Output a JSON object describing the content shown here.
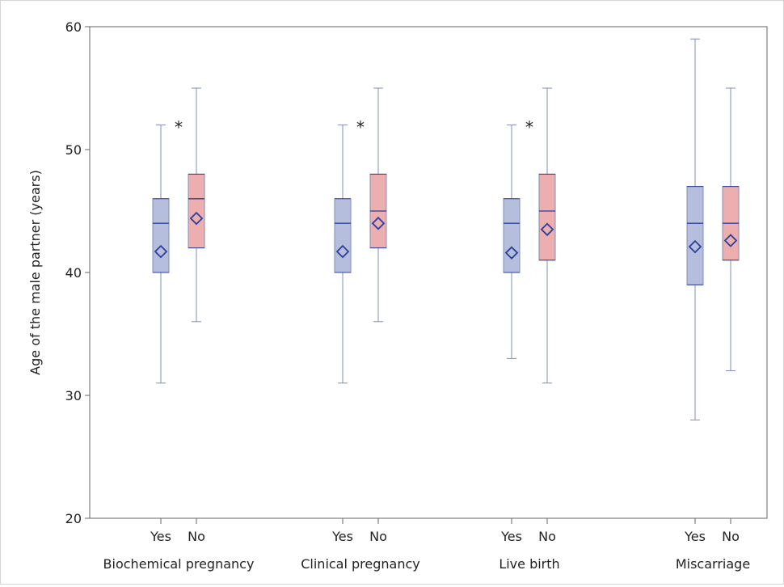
{
  "chart_data": {
    "type": "boxplot",
    "ylabel": "Age of the male partner (years)",
    "ylim": [
      20,
      60
    ],
    "yticks": [
      20,
      30,
      40,
      50,
      60
    ],
    "groups": [
      {
        "label": "Biochemical pregnancy",
        "significant": true,
        "marker": "*",
        "boxes": [
          {
            "label": "Yes",
            "min": 31,
            "q1": 40,
            "median": 44,
            "q3": 46,
            "max": 52,
            "mean": 41.7
          },
          {
            "label": "No",
            "min": 36,
            "q1": 42,
            "median": 46,
            "q3": 48,
            "max": 55,
            "mean": 44.4
          }
        ]
      },
      {
        "label": "Clinical pregnancy",
        "significant": true,
        "marker": "*",
        "boxes": [
          {
            "label": "Yes",
            "min": 31,
            "q1": 40,
            "median": 44,
            "q3": 46,
            "max": 52,
            "mean": 41.7
          },
          {
            "label": "No",
            "min": 36,
            "q1": 42,
            "median": 45,
            "q3": 48,
            "max": 55,
            "mean": 44.0
          }
        ]
      },
      {
        "label": "Live birth",
        "significant": true,
        "marker": "*",
        "boxes": [
          {
            "label": "Yes",
            "min": 33,
            "q1": 40,
            "median": 44,
            "q3": 46,
            "max": 52,
            "mean": 41.6
          },
          {
            "label": "No",
            "min": 31,
            "q1": 41,
            "median": 45,
            "q3": 48,
            "max": 55,
            "mean": 43.5
          }
        ]
      },
      {
        "label": "Miscarriage",
        "significant": false,
        "marker": "",
        "boxes": [
          {
            "label": "Yes",
            "min": 28,
            "q1": 39,
            "median": 44,
            "q3": 47,
            "max": 59,
            "mean": 42.1
          },
          {
            "label": "No",
            "min": 32,
            "q1": 41,
            "median": 44,
            "q3": 47,
            "max": 55,
            "mean": 42.6
          }
        ]
      }
    ],
    "colors": {
      "yes_fill": "#b5bedc",
      "no_fill": "#ecaeae",
      "outline": "#7f8fb8",
      "median_mean": "#2a3f9e",
      "axis": "#666666"
    }
  }
}
